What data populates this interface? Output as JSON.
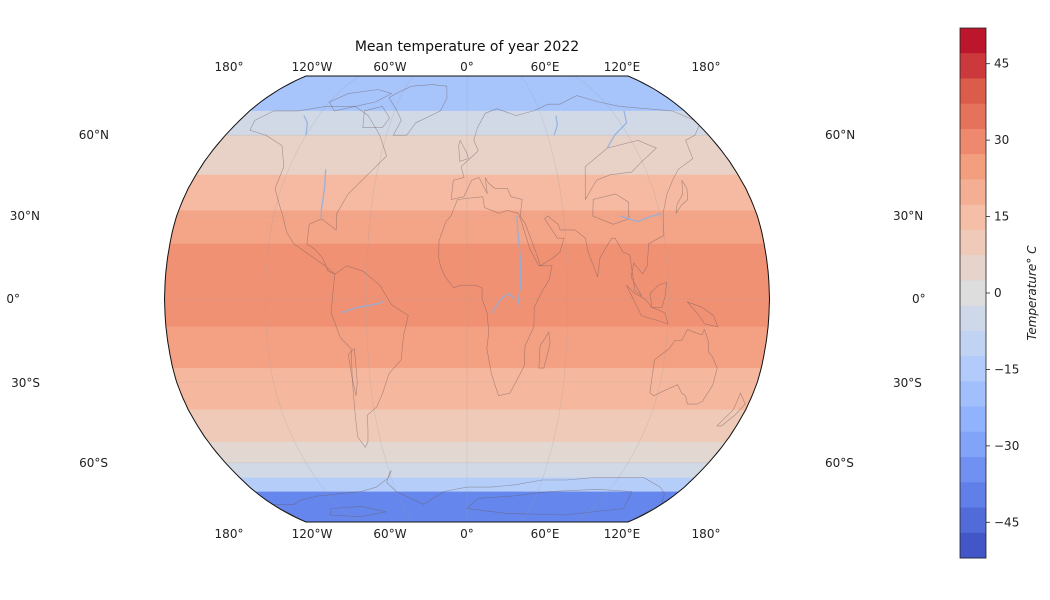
{
  "title": "Mean temperature of year 2022",
  "projection": "robinson",
  "lon_ticks": [
    "180°",
    "120°W",
    "60°W",
    "0°",
    "60°E",
    "120°E",
    "180°"
  ],
  "lat_ticks": [
    "60°N",
    "30°N",
    "0°",
    "30°S",
    "60°S"
  ],
  "colorbar": {
    "label": "Temperature$^{\\circ}$C",
    "label_display": "Temperature° C",
    "ticks": [
      "45",
      "30",
      "15",
      "0",
      "−15",
      "−30",
      "−45"
    ],
    "tick_values": [
      45,
      30,
      15,
      0,
      -15,
      -30,
      -45
    ],
    "range": [
      -52,
      52
    ],
    "colormap": "coolwarm",
    "levels": 21
  },
  "bands": [
    {
      "lat": [
        70,
        90
      ],
      "temp": -18
    },
    {
      "lat": [
        60,
        70
      ],
      "temp": -4
    },
    {
      "lat": [
        45,
        60
      ],
      "temp": 6
    },
    {
      "lat": [
        32,
        45
      ],
      "temp": 16
    },
    {
      "lat": [
        20,
        32
      ],
      "temp": 23
    },
    {
      "lat": [
        -10,
        20
      ],
      "temp": 28
    },
    {
      "lat": [
        -25,
        -10
      ],
      "temp": 24
    },
    {
      "lat": [
        -40,
        -25
      ],
      "temp": 17
    },
    {
      "lat": [
        -52,
        -40
      ],
      "temp": 10
    },
    {
      "lat": [
        -60,
        -52
      ],
      "temp": 3
    },
    {
      "lat": [
        -66,
        -60
      ],
      "temp": -4
    },
    {
      "lat": [
        -72,
        -66
      ],
      "temp": -14
    },
    {
      "lat": [
        -90,
        -72
      ],
      "temp": -38
    }
  ],
  "colors": {
    "greenland": "#8fb0f0",
    "antarctica": "#4a63c8",
    "tibet": "#c7d8ee"
  }
}
